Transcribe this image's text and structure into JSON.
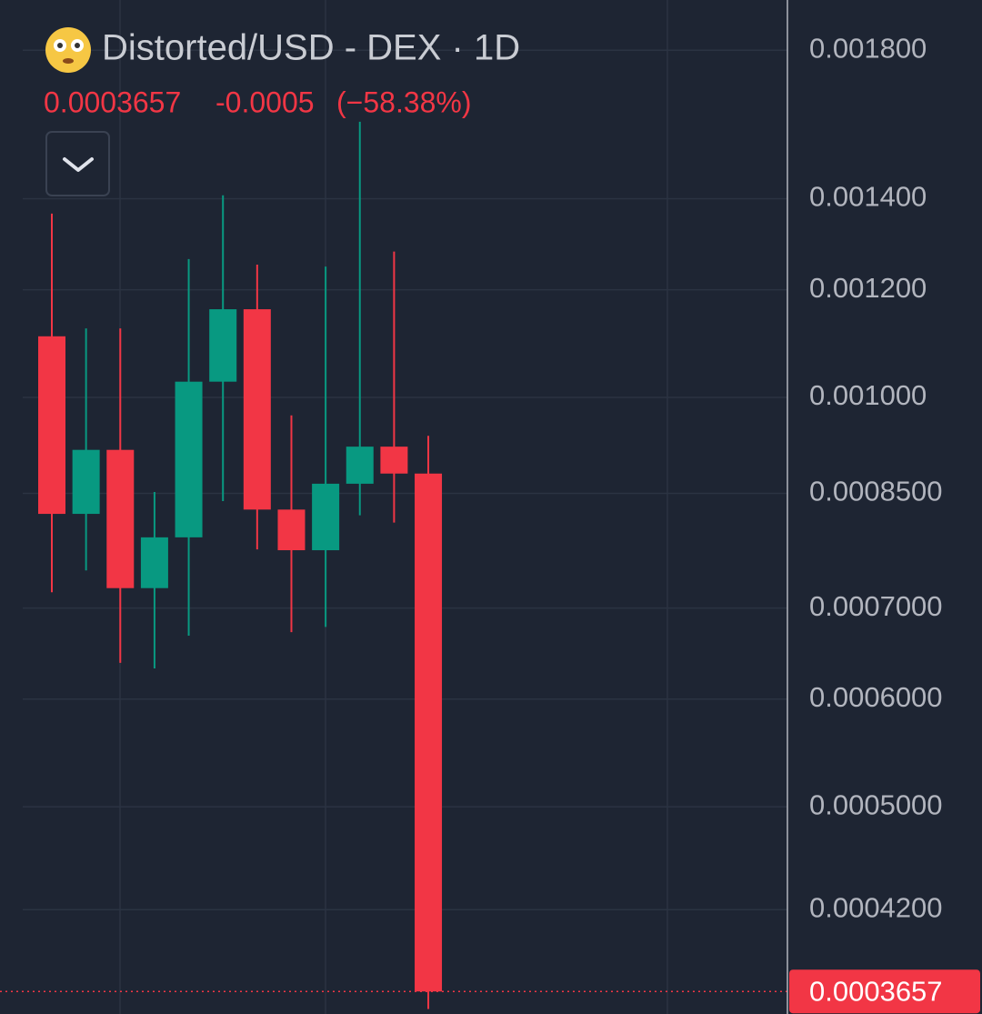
{
  "chart_data": {
    "type": "candlestick",
    "title": "Distorted/USD - DEX · 1D",
    "last_price": 0.0003657,
    "change": -0.0005,
    "change_percent_label": "(−58.38%)",
    "log_scale": true,
    "grid": true,
    "up_color": "#089981",
    "down_color": "#f23645",
    "open": [
      0.001109,
      0.000821,
      0.000915,
      0.000724,
      0.000789,
      0.001027,
      0.001161,
      0.000827,
      0.000772,
      0.000864,
      0.00092,
      0.000879
    ],
    "high": [
      0.001365,
      0.001124,
      0.001124,
      0.000852,
      0.001264,
      0.001408,
      0.001252,
      0.00097,
      0.001248,
      0.001595,
      0.00128,
      0.000937
    ],
    "low": [
      0.000719,
      0.000746,
      0.000638,
      0.000632,
      0.000668,
      0.000839,
      0.000773,
      0.000672,
      0.000678,
      0.000819,
      0.000809,
      0.000355
    ],
    "close": [
      0.000821,
      0.000915,
      0.000724,
      0.000789,
      0.001027,
      0.001161,
      0.000827,
      0.000772,
      0.000864,
      0.00092,
      0.000879,
      0.0003657
    ],
    "ylim": [
      0.000352,
      0.00196
    ],
    "yticks": [
      {
        "value": 0.0018,
        "label": "0.001800"
      },
      {
        "value": 0.0014,
        "label": "0.001400"
      },
      {
        "value": 0.0012,
        "label": "0.001200"
      },
      {
        "value": 0.001,
        "label": "0.001000"
      },
      {
        "value": 0.00085,
        "label": "0.0008500"
      },
      {
        "value": 0.0007,
        "label": "0.0007000"
      },
      {
        "value": 0.0006,
        "label": "0.0006000"
      },
      {
        "value": 0.0005,
        "label": "0.0005000"
      },
      {
        "value": 0.00042,
        "label": "0.0004200"
      }
    ]
  }
}
